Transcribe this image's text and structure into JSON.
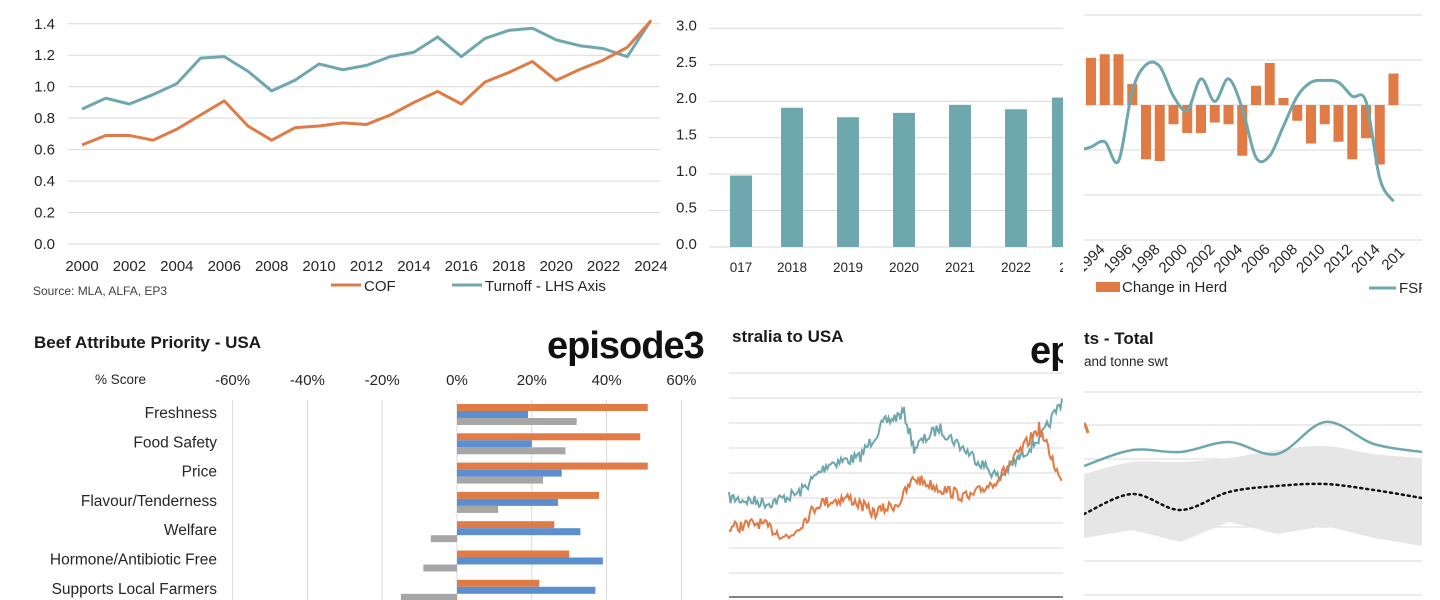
{
  "colors": {
    "orange": "#E07B45",
    "teal": "#6FA7AE",
    "blue": "#5B8FD0",
    "gray": "#A6A6A6",
    "gridline": "#D9D9D9"
  },
  "chart_data": [
    {
      "id": "cof-turnoff",
      "type": "line",
      "x": [
        2000,
        2001,
        2002,
        2003,
        2004,
        2005,
        2006,
        2007,
        2008,
        2009,
        2010,
        2011,
        2012,
        2013,
        2014,
        2015,
        2016,
        2017,
        2018,
        2019,
        2020,
        2021,
        2022,
        2023,
        2024
      ],
      "x_tick_labels": [
        "2000",
        "2002",
        "2004",
        "2006",
        "2008",
        "2010",
        "2012",
        "2014",
        "2016",
        "2018",
        "2020",
        "2022",
        "2024"
      ],
      "left_axis_ticks": [
        "0.0",
        "0.2",
        "0.4",
        "0.6",
        "0.8",
        "1.0",
        "1.2",
        "1.4"
      ],
      "right_axis_ticks": [
        "0.0",
        "0.5",
        "1.0",
        "1.5",
        "2.0",
        "2.5",
        "3.0"
      ],
      "ylim_left": [
        0,
        1.5
      ],
      "ylim_right": [
        0,
        3.2
      ],
      "source": "Source: MLA, ALFA, EP3",
      "series": [
        {
          "name": "COF",
          "axis": "left",
          "values": [
            0.63,
            0.69,
            0.69,
            0.66,
            0.73,
            0.82,
            0.91,
            0.75,
            0.66,
            0.74,
            0.75,
            0.77,
            0.76,
            0.82,
            0.9,
            0.97,
            0.89,
            1.03,
            1.09,
            1.16,
            1.04,
            1.11,
            1.17,
            1.25,
            1.42
          ]
        },
        {
          "name": "Turnoff - LHS Axis",
          "axis": "right",
          "values": [
            1.85,
            2.0,
            1.92,
            2.05,
            2.2,
            2.55,
            2.57,
            2.37,
            2.1,
            2.25,
            2.47,
            2.39,
            2.45,
            2.57,
            2.63,
            2.84,
            2.57,
            2.82,
            2.93,
            2.96,
            2.8,
            2.72,
            2.68,
            2.57,
            3.07
          ]
        }
      ]
    },
    {
      "id": "annual-bars",
      "type": "bar",
      "categories": [
        "017",
        "2018",
        "2019",
        "2020",
        "2021",
        "2022",
        "2"
      ],
      "values": [
        0.98,
        1.91,
        1.78,
        1.84,
        1.95,
        1.89,
        2.05
      ],
      "y_ticks": [
        "0.0",
        "0.5",
        "1.0",
        "1.5",
        "2.0",
        "2.5",
        "3.0"
      ],
      "ylim": [
        0,
        3.2
      ]
    },
    {
      "id": "herd-fsr",
      "type": "bar",
      "x_tick_labels": [
        "1994",
        "1996",
        "1998",
        "2000",
        "2002",
        "2004",
        "2006",
        "2008",
        "2010",
        "2012",
        "2014",
        "201"
      ],
      "series": [
        {
          "name": "Change in Herd",
          "values": [
            2.7,
            2.9,
            2.9,
            1.2,
            -3.1,
            -3.2,
            -1.1,
            -1.6,
            -1.6,
            -1.0,
            -1.1,
            -2.9,
            1.1,
            2.4,
            0.4,
            -0.9,
            -2.2,
            -1.1,
            -2.1,
            -3.1,
            -1.9,
            -3.4,
            1.8
          ]
        },
        {
          "name": "FSR",
          "values": [
            -2.4,
            -2.1,
            -3.2,
            0.8,
            2.3,
            2.2,
            0.5,
            -0.3,
            1.5,
            0.2,
            1.5,
            -0.2,
            -3.0,
            -2.9,
            -1.2,
            0.5,
            1.3,
            1.4,
            1.3,
            0.5,
            0.2,
            -4.2,
            -5.5
          ]
        }
      ]
    },
    {
      "id": "beef-attribute-priority",
      "type": "bar",
      "orientation": "horizontal",
      "title": "Beef Attribute Priority - USA",
      "axis_label": "% Score",
      "x_ticks": [
        "-60%",
        "-40%",
        "-20%",
        "0%",
        "20%",
        "40%",
        "60%"
      ],
      "xlim": [
        -60,
        60
      ],
      "categories": [
        "Freshness",
        "Food Safety",
        "Price",
        "Flavour/Tenderness",
        "Welfare",
        "Hormone/Antibiotic Free",
        "Supports Local Farmers"
      ],
      "series": [
        {
          "color": "orange",
          "values": [
            51,
            49,
            51,
            38,
            26,
            30,
            22
          ]
        },
        {
          "color": "blue",
          "values": [
            19,
            20,
            28,
            27,
            33,
            39,
            37
          ]
        },
        {
          "color": "gray",
          "values": [
            32,
            29,
            23,
            11,
            -7,
            -9,
            -15
          ]
        }
      ]
    },
    {
      "id": "australia-to-usa",
      "type": "line",
      "title": "stralia to USA",
      "series": [
        {
          "color": "teal"
        },
        {
          "color": "orange"
        }
      ]
    },
    {
      "id": "exports-total",
      "type": "area",
      "title": "ts - Total",
      "subtitle": "and tonne swt",
      "series": [
        {
          "color": "teal",
          "values": [
            3.2,
            3.6,
            3.55,
            3.8,
            3.5,
            4.3,
            3.75,
            3.55
          ]
        },
        {
          "style": "dotted",
          "values": [
            2.0,
            2.5,
            2.1,
            2.55,
            2.7,
            2.75,
            2.6,
            2.4
          ]
        },
        {
          "style": "band",
          "lower": [
            1.4,
            1.6,
            1.3,
            1.8,
            1.5,
            1.7,
            1.4,
            1.2
          ],
          "upper": [
            3.0,
            3.3,
            3.3,
            3.4,
            3.6,
            3.7,
            3.5,
            3.4
          ]
        }
      ]
    }
  ],
  "logos": {
    "panel4": "episode3",
    "panel5": "ep"
  }
}
